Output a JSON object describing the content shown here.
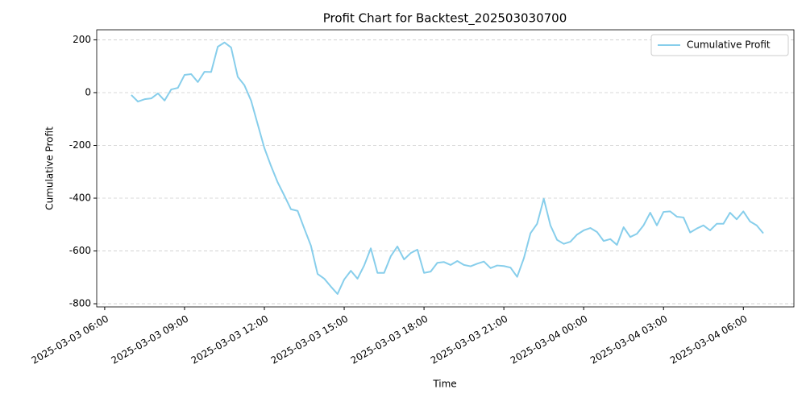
{
  "chart_data": {
    "type": "line",
    "title": "Profit Chart for Backtest_202503030700",
    "x_label": "Time",
    "y_label": "Cumulative Profit",
    "x": [
      "2025-03-03 07:00",
      "2025-03-03 07:15",
      "2025-03-03 07:30",
      "2025-03-03 07:45",
      "2025-03-03 08:00",
      "2025-03-03 08:15",
      "2025-03-03 08:30",
      "2025-03-03 08:45",
      "2025-03-03 09:00",
      "2025-03-03 09:15",
      "2025-03-03 09:30",
      "2025-03-03 09:45",
      "2025-03-03 10:00",
      "2025-03-03 10:15",
      "2025-03-03 10:30",
      "2025-03-03 10:45",
      "2025-03-03 11:00",
      "2025-03-03 11:15",
      "2025-03-03 11:30",
      "2025-03-03 11:45",
      "2025-03-03 12:00",
      "2025-03-03 12:15",
      "2025-03-03 12:30",
      "2025-03-03 12:45",
      "2025-03-03 13:00",
      "2025-03-03 13:15",
      "2025-03-03 13:30",
      "2025-03-03 13:45",
      "2025-03-03 14:00",
      "2025-03-03 14:15",
      "2025-03-03 14:30",
      "2025-03-03 14:45",
      "2025-03-03 15:00",
      "2025-03-03 15:15",
      "2025-03-03 15:30",
      "2025-03-03 15:45",
      "2025-03-03 16:00",
      "2025-03-03 16:15",
      "2025-03-03 16:30",
      "2025-03-03 16:45",
      "2025-03-03 17:00",
      "2025-03-03 17:15",
      "2025-03-03 17:30",
      "2025-03-03 17:45",
      "2025-03-03 18:00",
      "2025-03-03 18:15",
      "2025-03-03 18:30",
      "2025-03-03 18:45",
      "2025-03-03 19:00",
      "2025-03-03 19:15",
      "2025-03-03 19:30",
      "2025-03-03 19:45",
      "2025-03-03 20:00",
      "2025-03-03 20:15",
      "2025-03-03 20:30",
      "2025-03-03 20:45",
      "2025-03-03 21:00",
      "2025-03-03 21:15",
      "2025-03-03 21:30",
      "2025-03-03 21:45",
      "2025-03-03 22:00",
      "2025-03-03 22:15",
      "2025-03-03 22:30",
      "2025-03-03 22:45",
      "2025-03-03 23:00",
      "2025-03-03 23:15",
      "2025-03-03 23:30",
      "2025-03-03 23:45",
      "2025-03-04 00:00",
      "2025-03-04 00:15",
      "2025-03-04 00:30",
      "2025-03-04 00:45",
      "2025-03-04 01:00",
      "2025-03-04 01:15",
      "2025-03-04 01:30",
      "2025-03-04 01:45",
      "2025-03-04 02:00",
      "2025-03-04 02:15",
      "2025-03-04 02:30",
      "2025-03-04 02:45",
      "2025-03-04 03:00",
      "2025-03-04 03:15",
      "2025-03-04 03:30",
      "2025-03-04 03:45",
      "2025-03-04 04:00",
      "2025-03-04 04:15",
      "2025-03-04 04:30",
      "2025-03-04 04:45",
      "2025-03-04 05:00",
      "2025-03-04 05:15",
      "2025-03-04 05:30",
      "2025-03-04 05:45",
      "2025-03-04 06:00",
      "2025-03-04 06:15",
      "2025-03-04 06:30",
      "2025-03-04 06:45"
    ],
    "series": [
      {
        "name": "Cumulative Profit",
        "color": "#87ceeb",
        "values": [
          -9,
          -34,
          -25,
          -22,
          -3,
          -30,
          12,
          18,
          67,
          70,
          40,
          79,
          78,
          174,
          190,
          171,
          60,
          28,
          -30,
          -120,
          -210,
          -278,
          -340,
          -390,
          -442,
          -448,
          -515,
          -580,
          -687,
          -705,
          -735,
          -763,
          -708,
          -675,
          -705,
          -655,
          -590,
          -683,
          -683,
          -620,
          -583,
          -632,
          -608,
          -595,
          -683,
          -678,
          -645,
          -642,
          -653,
          -638,
          -653,
          -658,
          -648,
          -640,
          -665,
          -655,
          -657,
          -663,
          -698,
          -628,
          -533,
          -497,
          -402,
          -503,
          -558,
          -573,
          -565,
          -538,
          -522,
          -513,
          -528,
          -562,
          -555,
          -577,
          -510,
          -547,
          -535,
          -503,
          -455,
          -503,
          -452,
          -450,
          -470,
          -473,
          -530,
          -515,
          -503,
          -522,
          -497,
          -497,
          -455,
          -480,
          -450,
          -488,
          -503,
          -533
        ]
      }
    ],
    "xlim": [
      "2025-03-03 05:42",
      "2025-03-04 07:54"
    ],
    "xticks": [
      "2025-03-03 06:00",
      "2025-03-03 09:00",
      "2025-03-03 12:00",
      "2025-03-03 15:00",
      "2025-03-03 18:00",
      "2025-03-03 21:00",
      "2025-03-04 00:00",
      "2025-03-04 03:00",
      "2025-03-04 06:00"
    ],
    "ylim": [
      -812,
      238
    ],
    "yticks": [
      -800,
      -600,
      -400,
      -200,
      0,
      200
    ],
    "grid": "y",
    "legend": "upper right"
  }
}
